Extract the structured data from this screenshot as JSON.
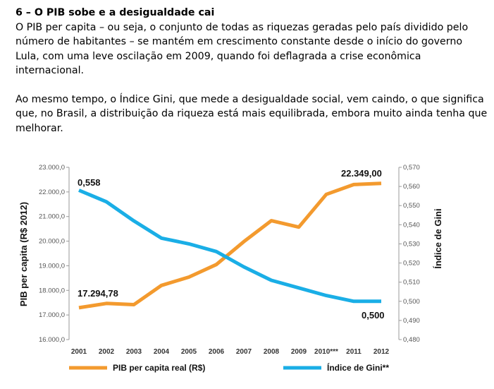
{
  "text": {
    "heading": "6 – O PIB sobe e a desigualdade cai",
    "paragraph1": "O PIB per capita – ou seja, o conjunto de todas as riquezas geradas pelo país dividido pelo número de habitantes – se mantém em crescimento constante desde o início do governo Lula, com uma leve oscilação em 2009, quando foi deflagrada a crise econômica internacional.",
    "paragraph2": "Ao mesmo tempo, o Índice Gini, que mede a desigualdade social, vem caindo, o que significa que, no Brasil, a distribuição da riqueza está mais equilibrada, embora muito ainda tenha que melhorar."
  },
  "colors": {
    "pib": "#f39a2e",
    "gini": "#1aaee6",
    "axis": "#999999"
  },
  "chart_data": {
    "type": "line",
    "x": [
      "2001",
      "2002",
      "2003",
      "2004",
      "2005",
      "2006",
      "2007",
      "2008",
      "2009",
      "2010***",
      "2011",
      "2012"
    ],
    "left_axis": {
      "label": "PIB per capita (R$ 2012)",
      "ylim": [
        16000,
        23000
      ],
      "ticks": [
        "16.000,0",
        "17.000,0",
        "18.000,0",
        "19.000,0",
        "20.000,0",
        "21.000,0",
        "22.000,0",
        "23.000,0"
      ]
    },
    "right_axis": {
      "label": "Índice de Gini",
      "ylim": [
        0.48,
        0.57
      ],
      "ticks": [
        "0,480",
        "0,490",
        "0,500",
        "0,510",
        "0,520",
        "0,530",
        "0,540",
        "0,550",
        "0,560",
        "0,570"
      ]
    },
    "series": [
      {
        "name": "PIB per capita real (R$)",
        "axis": "left",
        "values": [
          17294.78,
          17470,
          17420,
          18200,
          18540,
          19050,
          19980,
          20830,
          20570,
          21900,
          22300,
          22349.0
        ]
      },
      {
        "name": "Índice de Gini**",
        "axis": "right",
        "values": [
          0.558,
          0.552,
          0.542,
          0.533,
          0.53,
          0.526,
          0.518,
          0.511,
          0.507,
          0.503,
          0.5,
          0.5
        ]
      }
    ],
    "annotations": [
      "0,558",
      "17.294,78",
      "22.349,00",
      "0,500"
    ],
    "legend": [
      "PIB per capita real (R$)",
      "Índice de Gini**"
    ],
    "grid": false,
    "legend_position": "bottom"
  }
}
